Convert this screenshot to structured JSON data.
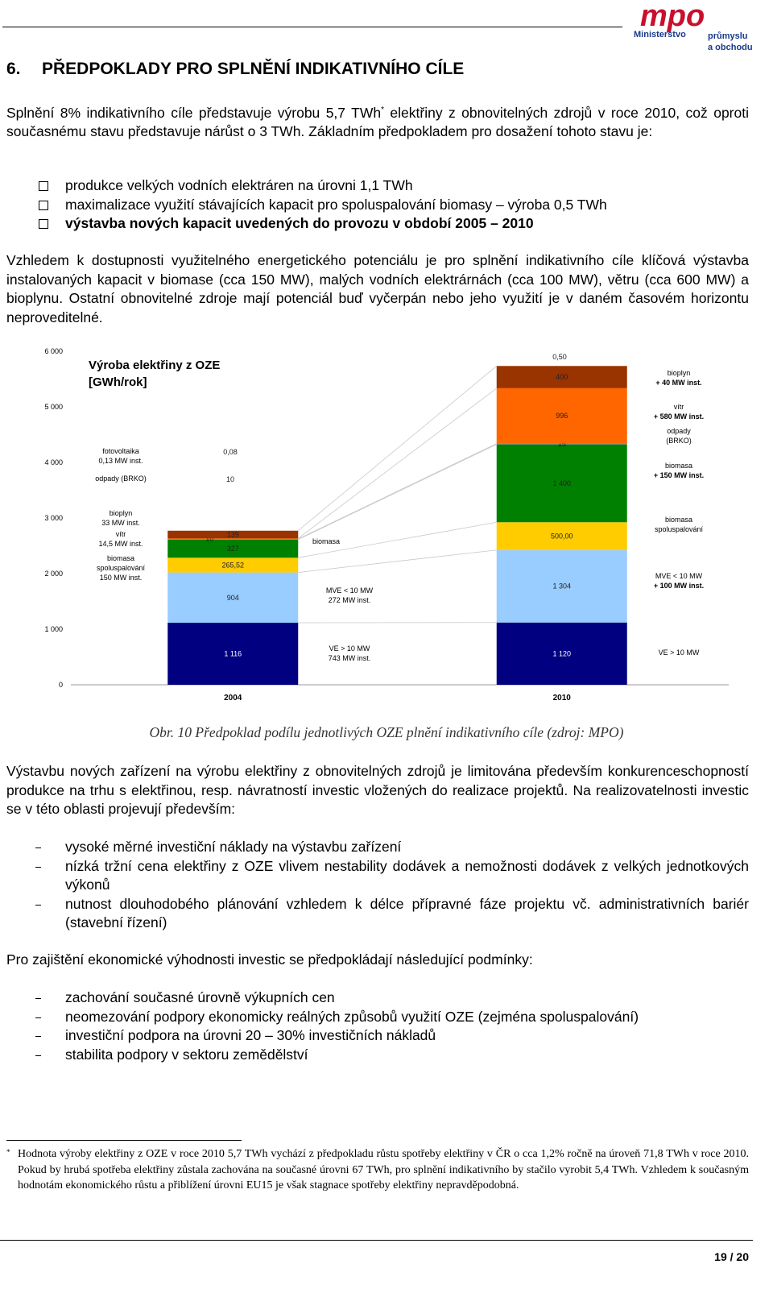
{
  "header": {
    "logo_mark": "mpo",
    "logo_lines": [
      "Ministerstvo",
      "průmyslu",
      "a obchodu"
    ]
  },
  "heading": {
    "number": "6.",
    "title": "PŘEDPOKLADY PRO SPLNĚNÍ INDIKATIVNÍHO CÍLE"
  },
  "intro": {
    "before": "Splnění 8% indikativního cíle představuje výrobu 5,7 TWh",
    "mark": "*",
    "after": " elektřiny z obnovitelných zdrojů v roce 2010, což oproti současnému stavu představuje nárůst o 3 TWh. Základním předpokladem pro dosažení tohoto stavu je:"
  },
  "conditions": [
    "produkce velkých vodních elektráren na úrovni 1,1 TWh",
    "maximalizace využití stávajících kapacit pro spoluspalování biomasy – výroba 0,5 TWh",
    "výstavba nových kapacit uvedených do provozu v období 2005 – 2010"
  ],
  "paragraph_2": "Vzhledem k dostupnosti využitelného energetického potenciálu je pro splnění indikativního cíle klíčová výstavba instalovaných kapacit v biomase (cca 150 MW), malých vodních elektrárnách (cca 100 MW), větru (cca 600 MW) a bioplynu. Ostatní obnovitelné zdroje mají potenciál buď vyčerpán nebo jeho využití je v daném časovém horizontu neproveditelné.",
  "chart_data": {
    "type": "stacked-bar",
    "title": "Výroba elektřiny z OZE\n[GWh/rok]",
    "categories": [
      "2004",
      "2010"
    ],
    "series": [
      {
        "name": "VE > 10 MW",
        "color": "#000080",
        "values": [
          1116,
          1120
        ],
        "value_labels": [
          "1 116",
          "1 120"
        ]
      },
      {
        "name": "MVE < 10 MW",
        "color": "#99ccff",
        "values": [
          904,
          1304
        ],
        "value_labels": [
          "904",
          "1 304"
        ]
      },
      {
        "name": "biomasa spoluspalování",
        "color": "#ffcc00",
        "values": [
          265.52,
          500
        ],
        "value_labels": [
          "265,52",
          "500,00"
        ]
      },
      {
        "name": "biomasa",
        "color": "#008000",
        "values": [
          327,
          1400
        ],
        "value_labels": [
          "327",
          "1 400"
        ]
      },
      {
        "name": "odpady (BRKO)",
        "color": "#808080",
        "values": [
          10,
          15
        ],
        "value_labels": [
          "10",
          "15"
        ]
      },
      {
        "name": "vítr",
        "color": "#ff6600",
        "values": [
          10,
          996
        ],
        "value_labels": [
          "10",
          "996"
        ]
      },
      {
        "name": "bioplyn",
        "color": "#993300",
        "values": [
          139,
          400
        ],
        "value_labels": [
          "139",
          "400"
        ]
      },
      {
        "name": "fotovoltaika",
        "color": "#ffff99",
        "values": [
          0.08,
          0.5
        ],
        "value_labels": [
          "0,08",
          "0,50"
        ]
      }
    ],
    "annotations": [
      "0,13 MW inst.",
      "odpady (BRKO)",
      "bioplyn\n33 MW inst.",
      "vítr\n14,5 MW inst.",
      "biomasa\nspoluspalování\n150 MW inst.",
      "biomasa",
      "MVE < 10 MW\n272 MW inst.",
      "VE > 10 MW\n743 MW inst.",
      "+ 40 MW inst.",
      "+ 580 MW inst.",
      "+ 150 MW inst.",
      "+ 100 MW inst."
    ],
    "ylim": [
      0,
      6000
    ],
    "yticks": [
      0,
      {
        "value": 1000,
        "label": "1 000"
      },
      {
        "value": 2000,
        "label": "2 000"
      },
      {
        "value": 3000,
        "label": "3 000"
      },
      {
        "value": 4000,
        "label": "4 000"
      },
      {
        "value": 5000,
        "label": "5 000"
      },
      {
        "value": 6000,
        "label": "6 000"
      }
    ],
    "grid": false
  },
  "caption": "Obr. 10 Předpoklad podílu jednotlivých OZE plnění indikativního cíle (zdroj: MPO)",
  "paragraph_3": "Výstavbu nových zařízení na výrobu elektřiny z obnovitelných zdrojů je limitována především konkurenceschopností produkce na trhu s elektřinou, resp. návratností investic vložených do realizace projektů. Na realizovatelnosti investic se v této oblasti projevují především:",
  "barriers": [
    "vysoké měrné investiční náklady na výstavbu zařízení",
    "nízká tržní cena elektřiny z OZE vlivem nestability dodávek a nemožnosti dodávek z velkých jednotkových výkonů",
    "nutnost dlouhodobého plánování vzhledem k délce přípravné fáze projektu vč. administrativních bariér (stavební řízení)"
  ],
  "paragraph_4": "Pro zajištění ekonomické výhodnosti investic se předpokládají následující podmínky:",
  "requirements": [
    "zachování současné úrovně výkupních cen",
    "neomezování podpory ekonomicky reálných způsobů využití OZE (zejména spoluspalování)",
    "investiční podpora na úrovni 20 – 30% investičních nákladů",
    "stabilita podpory v sektoru zemědělství"
  ],
  "footnote": {
    "mark": "*",
    "text": "Hodnota výroby elektřiny z OZE v roce 2010 5,7 TWh vychází z předpokladu růstu spotřeby elektřiny v ČR o cca 1,2% ročně na úroveň 71,8 TWh v roce 2010. Pokud by hrubá spotřeba elektřiny zůstala zachována na současné úrovni 67 TWh, pro splnění indikativního by stačilo vyrobit 5,4 TWh. Vzhledem k současným hodnotám ekonomického růstu a přiblížení úrovni EU15 je však stagnace spotřeby elektřiny nepravděpodobná."
  },
  "page_number": "19 / 20"
}
